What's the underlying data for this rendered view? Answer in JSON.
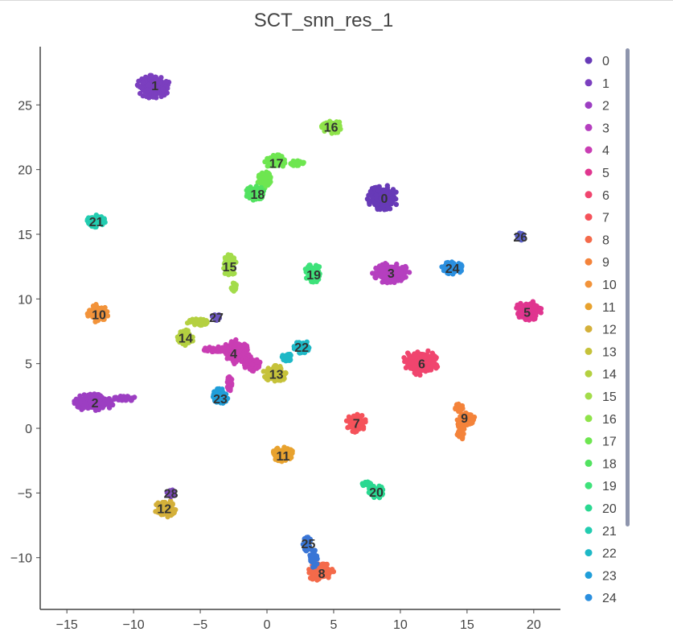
{
  "chart_data": {
    "type": "scatter",
    "title": "SCT_snn_res_1",
    "xlabel": "",
    "ylabel": "",
    "xlim": [
      -17,
      22
    ],
    "ylim": [
      -14,
      29.5
    ],
    "x_ticks": [
      -15,
      -10,
      -5,
      0,
      5,
      10,
      15,
      20
    ],
    "y_ticks": [
      -10,
      -5,
      0,
      5,
      10,
      15,
      20,
      25
    ],
    "x_tick_labels": [
      "−15",
      "−10",
      "−5",
      "0",
      "5",
      "10",
      "15",
      "20"
    ],
    "y_tick_labels": [
      "−10",
      "−5",
      "0",
      "5",
      "10",
      "15",
      "20",
      "25"
    ],
    "grid": false,
    "legend_position": "right",
    "legend_scrollable": true,
    "legend_entries": [
      "0",
      "1",
      "2",
      "3",
      "4",
      "5",
      "6",
      "7",
      "8",
      "9",
      "10",
      "11",
      "12",
      "13",
      "14",
      "15",
      "16",
      "17",
      "18",
      "19",
      "20",
      "21",
      "22",
      "23",
      "24"
    ],
    "series": [
      {
        "name": "0",
        "color": "#673ab7",
        "label_pos": [
          8.8,
          17.8
        ],
        "blobs": [
          [
            8.7,
            17.8,
            1.2,
            1.0
          ]
        ]
      },
      {
        "name": "1",
        "color": "#7b3fbf",
        "label_pos": [
          -8.4,
          26.5
        ],
        "blobs": [
          [
            -8.5,
            26.4,
            1.3,
            0.9
          ]
        ]
      },
      {
        "name": "2",
        "color": "#9c3ec2",
        "label_pos": [
          -12.9,
          2.0
        ],
        "blobs": [
          [
            -13.0,
            2.0,
            1.5,
            0.7
          ],
          [
            -10.7,
            2.3,
            0.9,
            0.2
          ]
        ]
      },
      {
        "name": "3",
        "color": "#b53fbf",
        "label_pos": [
          9.3,
          12.0
        ],
        "blobs": [
          [
            9.3,
            12.0,
            1.4,
            0.8
          ]
        ]
      },
      {
        "name": "4",
        "color": "#c93db3",
        "label_pos": [
          -2.5,
          5.8
        ],
        "blobs": [
          [
            -2.3,
            5.9,
            1.0,
            1.0
          ],
          [
            -3.8,
            6.1,
            1.1,
            0.2
          ],
          [
            -1.2,
            5.0,
            0.7,
            0.6
          ],
          [
            -2.8,
            3.5,
            0.2,
            0.6
          ]
        ]
      },
      {
        "name": "5",
        "color": "#e0358f",
        "label_pos": [
          19.5,
          9.0
        ],
        "blobs": [
          [
            19.6,
            9.1,
            1.0,
            0.8
          ]
        ]
      },
      {
        "name": "6",
        "color": "#f0456e",
        "label_pos": [
          11.6,
          5.0
        ],
        "blobs": [
          [
            11.5,
            5.1,
            1.4,
            1.0
          ]
        ]
      },
      {
        "name": "7",
        "color": "#f5525a",
        "label_pos": [
          6.7,
          0.4
        ],
        "blobs": [
          [
            6.7,
            0.4,
            0.8,
            0.7
          ]
        ]
      },
      {
        "name": "8",
        "color": "#f46a4a",
        "label_pos": [
          4.1,
          -11.2
        ],
        "blobs": [
          [
            4.0,
            -11.1,
            1.1,
            0.7
          ]
        ]
      },
      {
        "name": "9",
        "color": "#f4833a",
        "label_pos": [
          14.8,
          0.8
        ],
        "blobs": [
          [
            14.9,
            0.8,
            0.7,
            0.6
          ],
          [
            14.5,
            -0.2,
            0.3,
            0.7
          ],
          [
            14.4,
            1.6,
            0.3,
            0.3
          ]
        ]
      },
      {
        "name": "10",
        "color": "#f2933a",
        "label_pos": [
          -12.6,
          8.8
        ],
        "blobs": [
          [
            -12.7,
            8.9,
            0.8,
            0.7
          ]
        ]
      },
      {
        "name": "11",
        "color": "#e8a22e",
        "label_pos": [
          1.2,
          -2.1
        ],
        "blobs": [
          [
            1.2,
            -2.0,
            0.8,
            0.6
          ]
        ]
      },
      {
        "name": "12",
        "color": "#d4b03a",
        "label_pos": [
          -7.7,
          -6.2
        ],
        "blobs": [
          [
            -7.6,
            -6.2,
            0.8,
            0.7
          ]
        ]
      },
      {
        "name": "13",
        "color": "#c6c23a",
        "label_pos": [
          0.7,
          4.2
        ],
        "blobs": [
          [
            0.6,
            4.2,
            0.9,
            0.7
          ]
        ]
      },
      {
        "name": "14",
        "color": "#b4d040",
        "label_pos": [
          -6.1,
          7.0
        ],
        "blobs": [
          [
            -6.1,
            7.0,
            0.6,
            0.6
          ],
          [
            -5.2,
            8.2,
            0.8,
            0.25
          ]
        ]
      },
      {
        "name": "15",
        "color": "#a3dc4a",
        "label_pos": [
          -2.8,
          12.5
        ],
        "blobs": [
          [
            -2.8,
            12.6,
            0.5,
            0.9
          ],
          [
            -2.5,
            11.0,
            0.2,
            0.4
          ]
        ]
      },
      {
        "name": "16",
        "color": "#8fe34a",
        "label_pos": [
          4.8,
          23.3
        ],
        "blobs": [
          [
            4.9,
            23.3,
            0.8,
            0.5
          ]
        ]
      },
      {
        "name": "17",
        "color": "#6ee650",
        "label_pos": [
          0.7,
          20.5
        ],
        "blobs": [
          [
            0.6,
            20.6,
            0.8,
            0.6
          ],
          [
            -0.2,
            19.2,
            0.5,
            0.7
          ],
          [
            2.2,
            20.5,
            0.6,
            0.2
          ]
        ]
      },
      {
        "name": "18",
        "color": "#52e260",
        "label_pos": [
          -0.7,
          18.1
        ],
        "blobs": [
          [
            -0.9,
            18.2,
            0.7,
            0.6
          ]
        ]
      },
      {
        "name": "19",
        "color": "#3ee27a",
        "label_pos": [
          3.5,
          11.9
        ],
        "blobs": [
          [
            3.5,
            12.0,
            0.7,
            0.7
          ]
        ]
      },
      {
        "name": "20",
        "color": "#2ad891",
        "label_pos": [
          8.2,
          -4.9
        ],
        "blobs": [
          [
            8.2,
            -4.9,
            0.6,
            0.5
          ],
          [
            7.5,
            -4.3,
            0.4,
            0.2
          ]
        ]
      },
      {
        "name": "21",
        "color": "#22ccb0",
        "label_pos": [
          -12.8,
          16.0
        ],
        "blobs": [
          [
            -12.8,
            16.0,
            0.7,
            0.5
          ]
        ]
      },
      {
        "name": "22",
        "color": "#1eb8c6",
        "label_pos": [
          2.6,
          6.3
        ],
        "blobs": [
          [
            2.6,
            6.3,
            0.6,
            0.5
          ],
          [
            1.5,
            5.5,
            0.4,
            0.3
          ]
        ]
      },
      {
        "name": "23",
        "color": "#209ed9",
        "label_pos": [
          -3.5,
          2.3
        ],
        "blobs": [
          [
            -3.5,
            2.5,
            0.6,
            0.6
          ]
        ]
      },
      {
        "name": "24",
        "color": "#2a8fdf",
        "label_pos": [
          13.9,
          12.4
        ],
        "blobs": [
          [
            13.9,
            12.4,
            0.8,
            0.5
          ]
        ]
      },
      {
        "name": "25",
        "color": "#3a76d6",
        "label_pos": [
          3.1,
          -8.9
        ],
        "blobs": [
          [
            3.0,
            -8.9,
            0.3,
            0.6
          ],
          [
            3.5,
            -10.1,
            0.3,
            0.7
          ]
        ]
      },
      {
        "name": "26",
        "color": "#5a5fc8",
        "label_pos": [
          19.0,
          14.8
        ],
        "blobs": [
          [
            19.0,
            14.8,
            0.3,
            0.3
          ]
        ]
      },
      {
        "name": "27",
        "color": "#6c55c0",
        "label_pos": [
          -3.8,
          8.6
        ],
        "blobs": [
          [
            -3.8,
            8.6,
            0.3,
            0.25
          ]
        ]
      },
      {
        "name": "28",
        "color": "#7c4ab8",
        "label_pos": [
          -7.2,
          -5.0
        ],
        "blobs": [
          [
            -7.2,
            -5.0,
            0.3,
            0.3
          ]
        ]
      }
    ]
  }
}
